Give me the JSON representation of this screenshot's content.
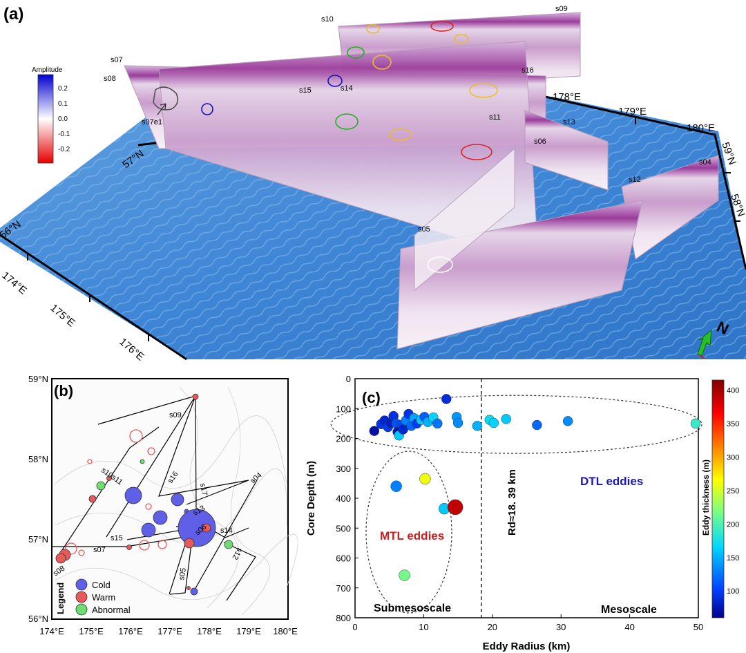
{
  "panel_a": {
    "label": "(a)",
    "colorbar_title": "Amplitude",
    "colorbar_ticks": [
      "0.2",
      "0.1",
      "0.0",
      "-0.1",
      "-0.2"
    ],
    "lon_labels": [
      "174°E",
      "175°E",
      "176°E",
      "178°E",
      "179°E",
      "180°E"
    ],
    "lat_labels": [
      "56°N",
      "57°N",
      "58°N",
      "59°N"
    ],
    "section_labels": [
      "s10",
      "s09",
      "s07",
      "s08",
      "s16",
      "s15",
      "s14",
      "s13",
      "s11",
      "s06",
      "s12",
      "s04",
      "s05",
      "s07e1"
    ],
    "north_label": "N"
  },
  "panel_b": {
    "label": "(b)",
    "legend_title": "Legend",
    "legend": [
      {
        "label": "Cold",
        "color": "#5f5fe8"
      },
      {
        "label": "Warm",
        "color": "#e85a5a"
      },
      {
        "label": "Abnormal",
        "color": "#6fdc6f"
      }
    ],
    "x_ticks": [
      "174°E",
      "175°E",
      "176°E",
      "177°E",
      "178°E",
      "179°E",
      "180°E"
    ],
    "y_ticks": [
      "59°N",
      "58°N",
      "57°N",
      "56°N"
    ],
    "section_labels": [
      "s09",
      "s10s11",
      "s16",
      "s17",
      "s13",
      "s06",
      "s14",
      "s04",
      "s15",
      "s07",
      "s08",
      "s05",
      "s12"
    ]
  },
  "chart_data": {
    "type": "scatter",
    "label": "(c)",
    "title": "",
    "xlabel": "Eddy Radius (km)",
    "ylabel": "Core Depth (m)",
    "xlim": [
      0,
      50
    ],
    "ylim": [
      800,
      0
    ],
    "x_ticks": [
      "0",
      "10",
      "20",
      "30",
      "40",
      "50"
    ],
    "y_ticks": [
      "0",
      "100",
      "200",
      "300",
      "400",
      "500",
      "600",
      "700",
      "800"
    ],
    "colorbar_label": "Eddy thickness (m)",
    "colorbar_ticks": [
      "100",
      "150",
      "200",
      "250",
      "300",
      "350",
      "400"
    ],
    "colorbar_range": [
      60,
      415
    ],
    "rd_label": "Rd≈18. 39 km",
    "rd_value": 18.39,
    "region_labels": {
      "dtl": "DTL eddies",
      "mtl": "MTL eddies",
      "sub": "Submesoscale",
      "meso": "Mesoscale"
    },
    "points": [
      {
        "x": 13.3,
        "y": 68,
        "t": 90
      },
      {
        "x": 2.8,
        "y": 175,
        "t": 70
      },
      {
        "x": 3.8,
        "y": 152,
        "t": 95
      },
      {
        "x": 4.3,
        "y": 140,
        "t": 85
      },
      {
        "x": 4.8,
        "y": 162,
        "t": 100
      },
      {
        "x": 5.2,
        "y": 148,
        "t": 80
      },
      {
        "x": 5.6,
        "y": 125,
        "t": 92
      },
      {
        "x": 6.0,
        "y": 150,
        "t": 110
      },
      {
        "x": 6.2,
        "y": 178,
        "t": 75
      },
      {
        "x": 6.4,
        "y": 190,
        "t": 160
      },
      {
        "x": 6.8,
        "y": 155,
        "t": 105
      },
      {
        "x": 7.0,
        "y": 170,
        "t": 85
      },
      {
        "x": 7.4,
        "y": 140,
        "t": 130
      },
      {
        "x": 7.8,
        "y": 118,
        "t": 95
      },
      {
        "x": 8.2,
        "y": 158,
        "t": 120
      },
      {
        "x": 8.6,
        "y": 132,
        "t": 145
      },
      {
        "x": 9.0,
        "y": 150,
        "t": 100
      },
      {
        "x": 9.6,
        "y": 138,
        "t": 160
      },
      {
        "x": 10.1,
        "y": 128,
        "t": 115
      },
      {
        "x": 10.6,
        "y": 145,
        "t": 150
      },
      {
        "x": 11.4,
        "y": 130,
        "t": 165
      },
      {
        "x": 12.0,
        "y": 150,
        "t": 125
      },
      {
        "x": 14.8,
        "y": 128,
        "t": 140
      },
      {
        "x": 15.0,
        "y": 148,
        "t": 135
      },
      {
        "x": 17.8,
        "y": 158,
        "t": 150
      },
      {
        "x": 19.6,
        "y": 138,
        "t": 170
      },
      {
        "x": 20.2,
        "y": 148,
        "t": 165
      },
      {
        "x": 22.0,
        "y": 135,
        "t": 160
      },
      {
        "x": 26.5,
        "y": 155,
        "t": 120
      },
      {
        "x": 31.0,
        "y": 142,
        "t": 135
      },
      {
        "x": 49.6,
        "y": 150,
        "t": 190
      },
      {
        "x": 6.0,
        "y": 360,
        "t": 130
      },
      {
        "x": 10.2,
        "y": 335,
        "t": 260
      },
      {
        "x": 13.0,
        "y": 435,
        "t": 160
      },
      {
        "x": 14.6,
        "y": 430,
        "t": 390
      },
      {
        "x": 7.2,
        "y": 658,
        "t": 215
      }
    ]
  }
}
